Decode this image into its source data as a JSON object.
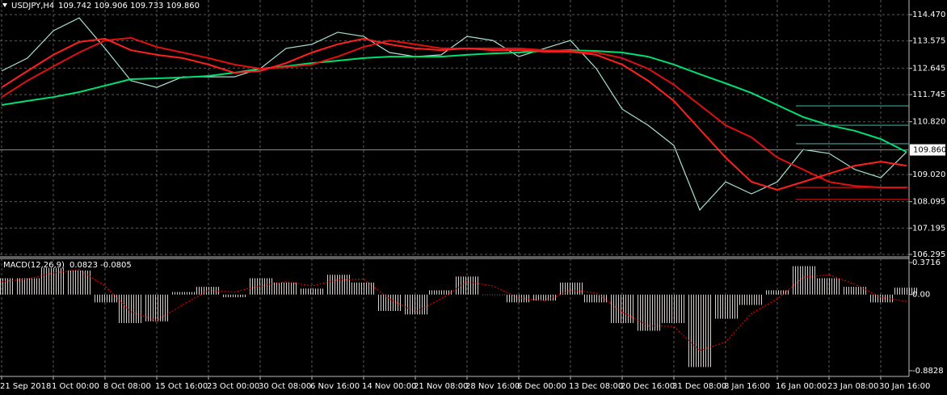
{
  "chart_data": [
    {
      "type": "line",
      "title": "USDJPY,H4",
      "subtitle": "109.742 109.906 109.733 109.860",
      "categories": [
        "21 Sep 2018",
        null,
        "1 Oct 00:00",
        null,
        "8 Oct 08:00",
        null,
        "15 Oct 16:00",
        null,
        "23 Oct 00:00",
        null,
        "30 Oct 08:00",
        null,
        "6 Nov 16:00",
        null,
        "14 Nov 00:00",
        null,
        "21 Nov 08:00",
        null,
        "28 Nov 16:00",
        null,
        "6 Dec 00:00",
        null,
        "13 Dec 08:00",
        null,
        "20 Dec 16:00",
        null,
        "31 Dec 08:00",
        null,
        "8 Jan 16:00",
        null,
        "16 Jan 00:00",
        null,
        "23 Jan 08:00",
        null,
        "30 Jan 16:00",
        null
      ],
      "series": [
        {
          "color": "#a6e3d4",
          "values": [
            112.55,
            112.99,
            113.92,
            114.36,
            113.32,
            112.22,
            111.99,
            112.35,
            112.35,
            112.35,
            112.63,
            113.32,
            113.46,
            113.87,
            113.73,
            113.18,
            113.04,
            113.1,
            113.73,
            113.59,
            113.04,
            113.32,
            113.59,
            112.63,
            111.25,
            110.7,
            110.01,
            107.81,
            108.77,
            108.36,
            108.77,
            109.87,
            109.74,
            109.19,
            108.91,
            109.79
          ]
        },
        {
          "color": "#00e070",
          "values": [
            111.39,
            111.53,
            111.66,
            111.83,
            112.05,
            112.27,
            112.3,
            112.33,
            112.38,
            112.49,
            112.63,
            112.71,
            112.82,
            112.9,
            112.99,
            113.04,
            113.04,
            113.04,
            113.1,
            113.15,
            113.18,
            113.23,
            113.26,
            113.23,
            113.18,
            113.04,
            112.77,
            112.44,
            112.13,
            111.8,
            111.39,
            110.98,
            110.7,
            110.51,
            110.23,
            109.79
          ]
        },
        {
          "color": "#e01010",
          "values": [
            111.66,
            112.22,
            112.71,
            113.18,
            113.59,
            113.68,
            113.37,
            113.18,
            112.99,
            112.77,
            112.63,
            112.68,
            112.77,
            113.04,
            113.37,
            113.59,
            113.46,
            113.32,
            113.32,
            113.32,
            113.32,
            113.26,
            113.23,
            113.18,
            112.99,
            112.63,
            112.08,
            111.39,
            110.7,
            110.29,
            109.6,
            109.19,
            108.77,
            108.63,
            108.58,
            108.58
          ]
        },
        {
          "color": "#ff2020",
          "values": [
            111.99,
            112.55,
            113.1,
            113.54,
            113.65,
            113.26,
            113.1,
            112.99,
            112.77,
            112.49,
            112.55,
            112.82,
            113.18,
            113.46,
            113.65,
            113.46,
            113.32,
            113.26,
            113.32,
            113.26,
            113.26,
            113.21,
            113.21,
            113.1,
            112.77,
            112.22,
            111.53,
            110.56,
            109.6,
            108.77,
            108.5,
            108.77,
            109.05,
            109.32,
            109.46,
            109.32
          ]
        }
      ],
      "levels": [
        {
          "value": 111.36,
          "color": "#3aa39a"
        },
        {
          "value": 110.7,
          "color": "#3aa39a"
        },
        {
          "value": 110.07,
          "color": "#3aa39a"
        },
        {
          "value": 108.58,
          "color": "#e01010"
        },
        {
          "value": 108.17,
          "color": "#e01010"
        }
      ],
      "last_price": {
        "value": 109.86,
        "label": "109.860"
      },
      "ylim": [
        106.24,
        114.97
      ],
      "yticks": [
        {
          "value": 114.47,
          "label": "114.470"
        },
        113.575,
        112.645,
        111.745,
        {
          "value": 110.82,
          "label": "110.820"
        },
        {
          "value": 109.02,
          "label": "109.020"
        },
        108.095,
        107.195,
        106.295
      ],
      "grid": true
    },
    {
      "type": "macd",
      "title": "MACD(12,26,9)",
      "subtitle": "0.0823 -0.0805",
      "series": [
        {
          "kind": "bar",
          "color": "#d8cfcf",
          "values": [
            0.19,
            0.19,
            0.31,
            0.28,
            -0.09,
            -0.33,
            -0.31,
            0.03,
            0.09,
            -0.03,
            0.19,
            0.14,
            0.07,
            0.23,
            0.14,
            -0.19,
            -0.23,
            0.05,
            0.21,
            0,
            -0.09,
            -0.07,
            0.14,
            -0.09,
            -0.33,
            -0.42,
            -0.33,
            -0.84,
            -0.28,
            -0.12,
            0.05,
            0.33,
            0.19,
            0.09,
            -0.09,
            0.08
          ]
        },
        {
          "kind": "line",
          "color": "#ff0000",
          "values": [
            0.15,
            0.18,
            0.25,
            0.29,
            0.1,
            -0.2,
            -0.3,
            -0.12,
            0.05,
            0.03,
            0.1,
            0.15,
            0.1,
            0.17,
            0.18,
            -0.05,
            -0.2,
            -0.05,
            0.15,
            0.1,
            -0.04,
            -0.07,
            0.05,
            0.02,
            -0.2,
            -0.36,
            -0.37,
            -0.65,
            -0.55,
            -0.22,
            -0.05,
            0.2,
            0.23,
            0.12,
            -0.03,
            -0.08
          ]
        }
      ],
      "ylim": [
        -0.93,
        0.4
      ],
      "yticks": [
        0.3716,
        {
          "value": 0,
          "label": "0.00"
        },
        -0.8828
      ],
      "grid": false
    }
  ]
}
